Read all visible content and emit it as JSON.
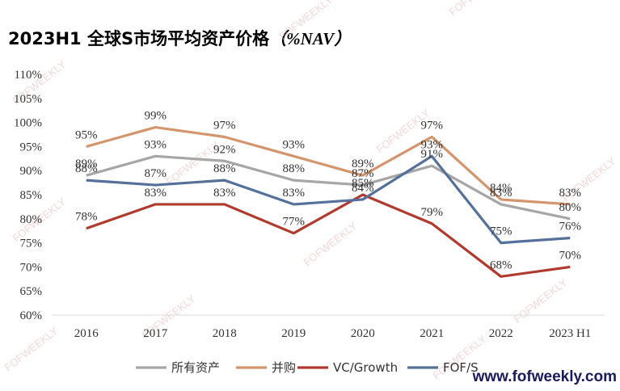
{
  "title": "2023H1 全球S市场平均资产价格",
  "title_unit": "（%NAV）",
  "watermark": "FOFWEEKLY",
  "site_url": "www.fofweekly.com",
  "chart_data": {
    "type": "line",
    "title": "2023H1 全球S市场平均资产价格（%NAV）",
    "categories": [
      "2016",
      "2017",
      "2018",
      "2019",
      "2020",
      "2021",
      "2022",
      "2023 H1"
    ],
    "yticks": [
      "60%",
      "65%",
      "70%",
      "75%",
      "80%",
      "85%",
      "90%",
      "95%",
      "100%",
      "105%",
      "110%"
    ],
    "ylim": [
      60,
      110
    ],
    "ytick_step": 5,
    "grid": false,
    "legend_position": "bottom",
    "series": [
      {
        "name": "所有资产",
        "color": "#a6a6a6",
        "values": [
          89,
          93,
          92,
          88,
          87,
          91,
          83,
          80
        ],
        "labels": [
          "89%",
          "93%",
          "92%",
          "88%",
          "87%",
          "91%",
          "83%",
          "80%"
        ]
      },
      {
        "name": "并购",
        "color": "#d4956c",
        "values": [
          95,
          99,
          97,
          93,
          89,
          97,
          84,
          83
        ],
        "labels": [
          "95%",
          "99%",
          "97%",
          "93%",
          "89%",
          "97%",
          "84%",
          "83%"
        ]
      },
      {
        "name": "VC/Growth",
        "color": "#b03a2e",
        "values": [
          78,
          83,
          83,
          77,
          85,
          79,
          68,
          70
        ],
        "labels": [
          "78%",
          "83%",
          "83%",
          "77%",
          "85%",
          "79%",
          "68%",
          "70%"
        ]
      },
      {
        "name": "FOF/S",
        "color": "#55709a",
        "values": [
          88,
          87,
          88,
          83,
          84,
          93,
          75,
          76
        ],
        "labels": [
          "88%",
          "87%",
          "88%",
          "83%",
          "84%",
          "93%",
          "75%",
          "76%"
        ]
      }
    ]
  }
}
